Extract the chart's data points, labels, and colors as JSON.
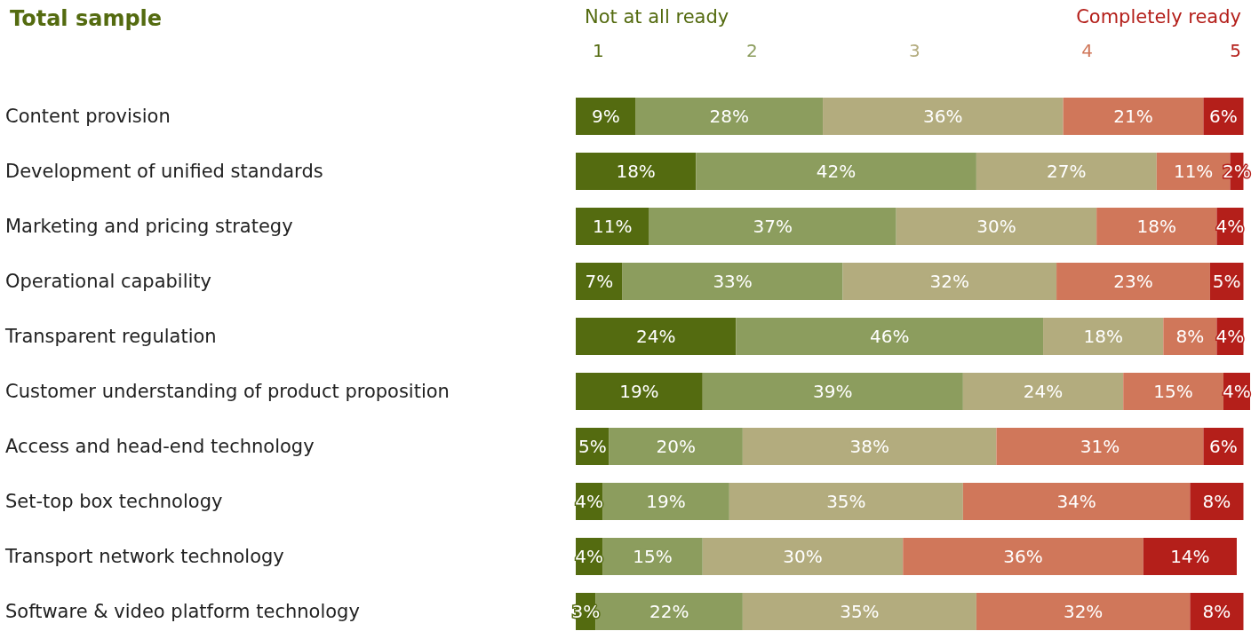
{
  "chart_data": {
    "type": "bar",
    "orientation": "horizontal",
    "stacked": true,
    "title": "Total sample",
    "annotations": [
      "Not at all ready",
      "Completely ready"
    ],
    "categories": [
      "Content provision",
      "Development of unified standards",
      "Marketing and pricing strategy",
      "Operational capability",
      "Transparent regulation",
      "Customer understanding of product proposition",
      "Access and head-end technology",
      "Set-top box technology",
      "Transport network technology",
      "Software & video platform technology"
    ],
    "tick_labels": "y",
    "grid": false,
    "legend": "top",
    "series": [
      {
        "name": "1",
        "color": "#546b10",
        "values": [
          9,
          18,
          11,
          7,
          24,
          19,
          5,
          4,
          4,
          3
        ],
        "value_labels": [
          "9%",
          "18%",
          "11%",
          "7%",
          "24%",
          "19%",
          "5%",
          "4%",
          "4%",
          "3%"
        ]
      },
      {
        "name": "2",
        "color": "#8c9d5e",
        "values": [
          28,
          42,
          37,
          33,
          46,
          39,
          20,
          19,
          15,
          22
        ],
        "value_labels": [
          "28%",
          "42%",
          "37%",
          "33%",
          "46%",
          "39%",
          "20%",
          "19%",
          "15%",
          "22%"
        ]
      },
      {
        "name": "3",
        "color": "#b3ac7e",
        "values": [
          36,
          27,
          30,
          32,
          18,
          24,
          38,
          35,
          30,
          35
        ],
        "value_labels": [
          "36%",
          "27%",
          "30%",
          "32%",
          "18%",
          "24%",
          "38%",
          "35%",
          "30%",
          "35%"
        ]
      },
      {
        "name": "4",
        "color": "#d0775a",
        "values": [
          21,
          11,
          18,
          23,
          8,
          15,
          31,
          34,
          36,
          32
        ],
        "value_labels": [
          "21%",
          "11%",
          "18%",
          "23%",
          "8%",
          "15%",
          "31%",
          "34%",
          "36%",
          "32%"
        ]
      },
      {
        "name": "5",
        "color": "#b41f1a",
        "values": [
          6,
          2,
          4,
          5,
          4,
          4,
          6,
          8,
          14,
          8
        ],
        "value_labels": [
          "6%",
          "2%",
          "4%",
          "5%",
          "4%",
          "4%",
          "6%",
          "8%",
          "14%",
          "8%"
        ]
      }
    ]
  }
}
